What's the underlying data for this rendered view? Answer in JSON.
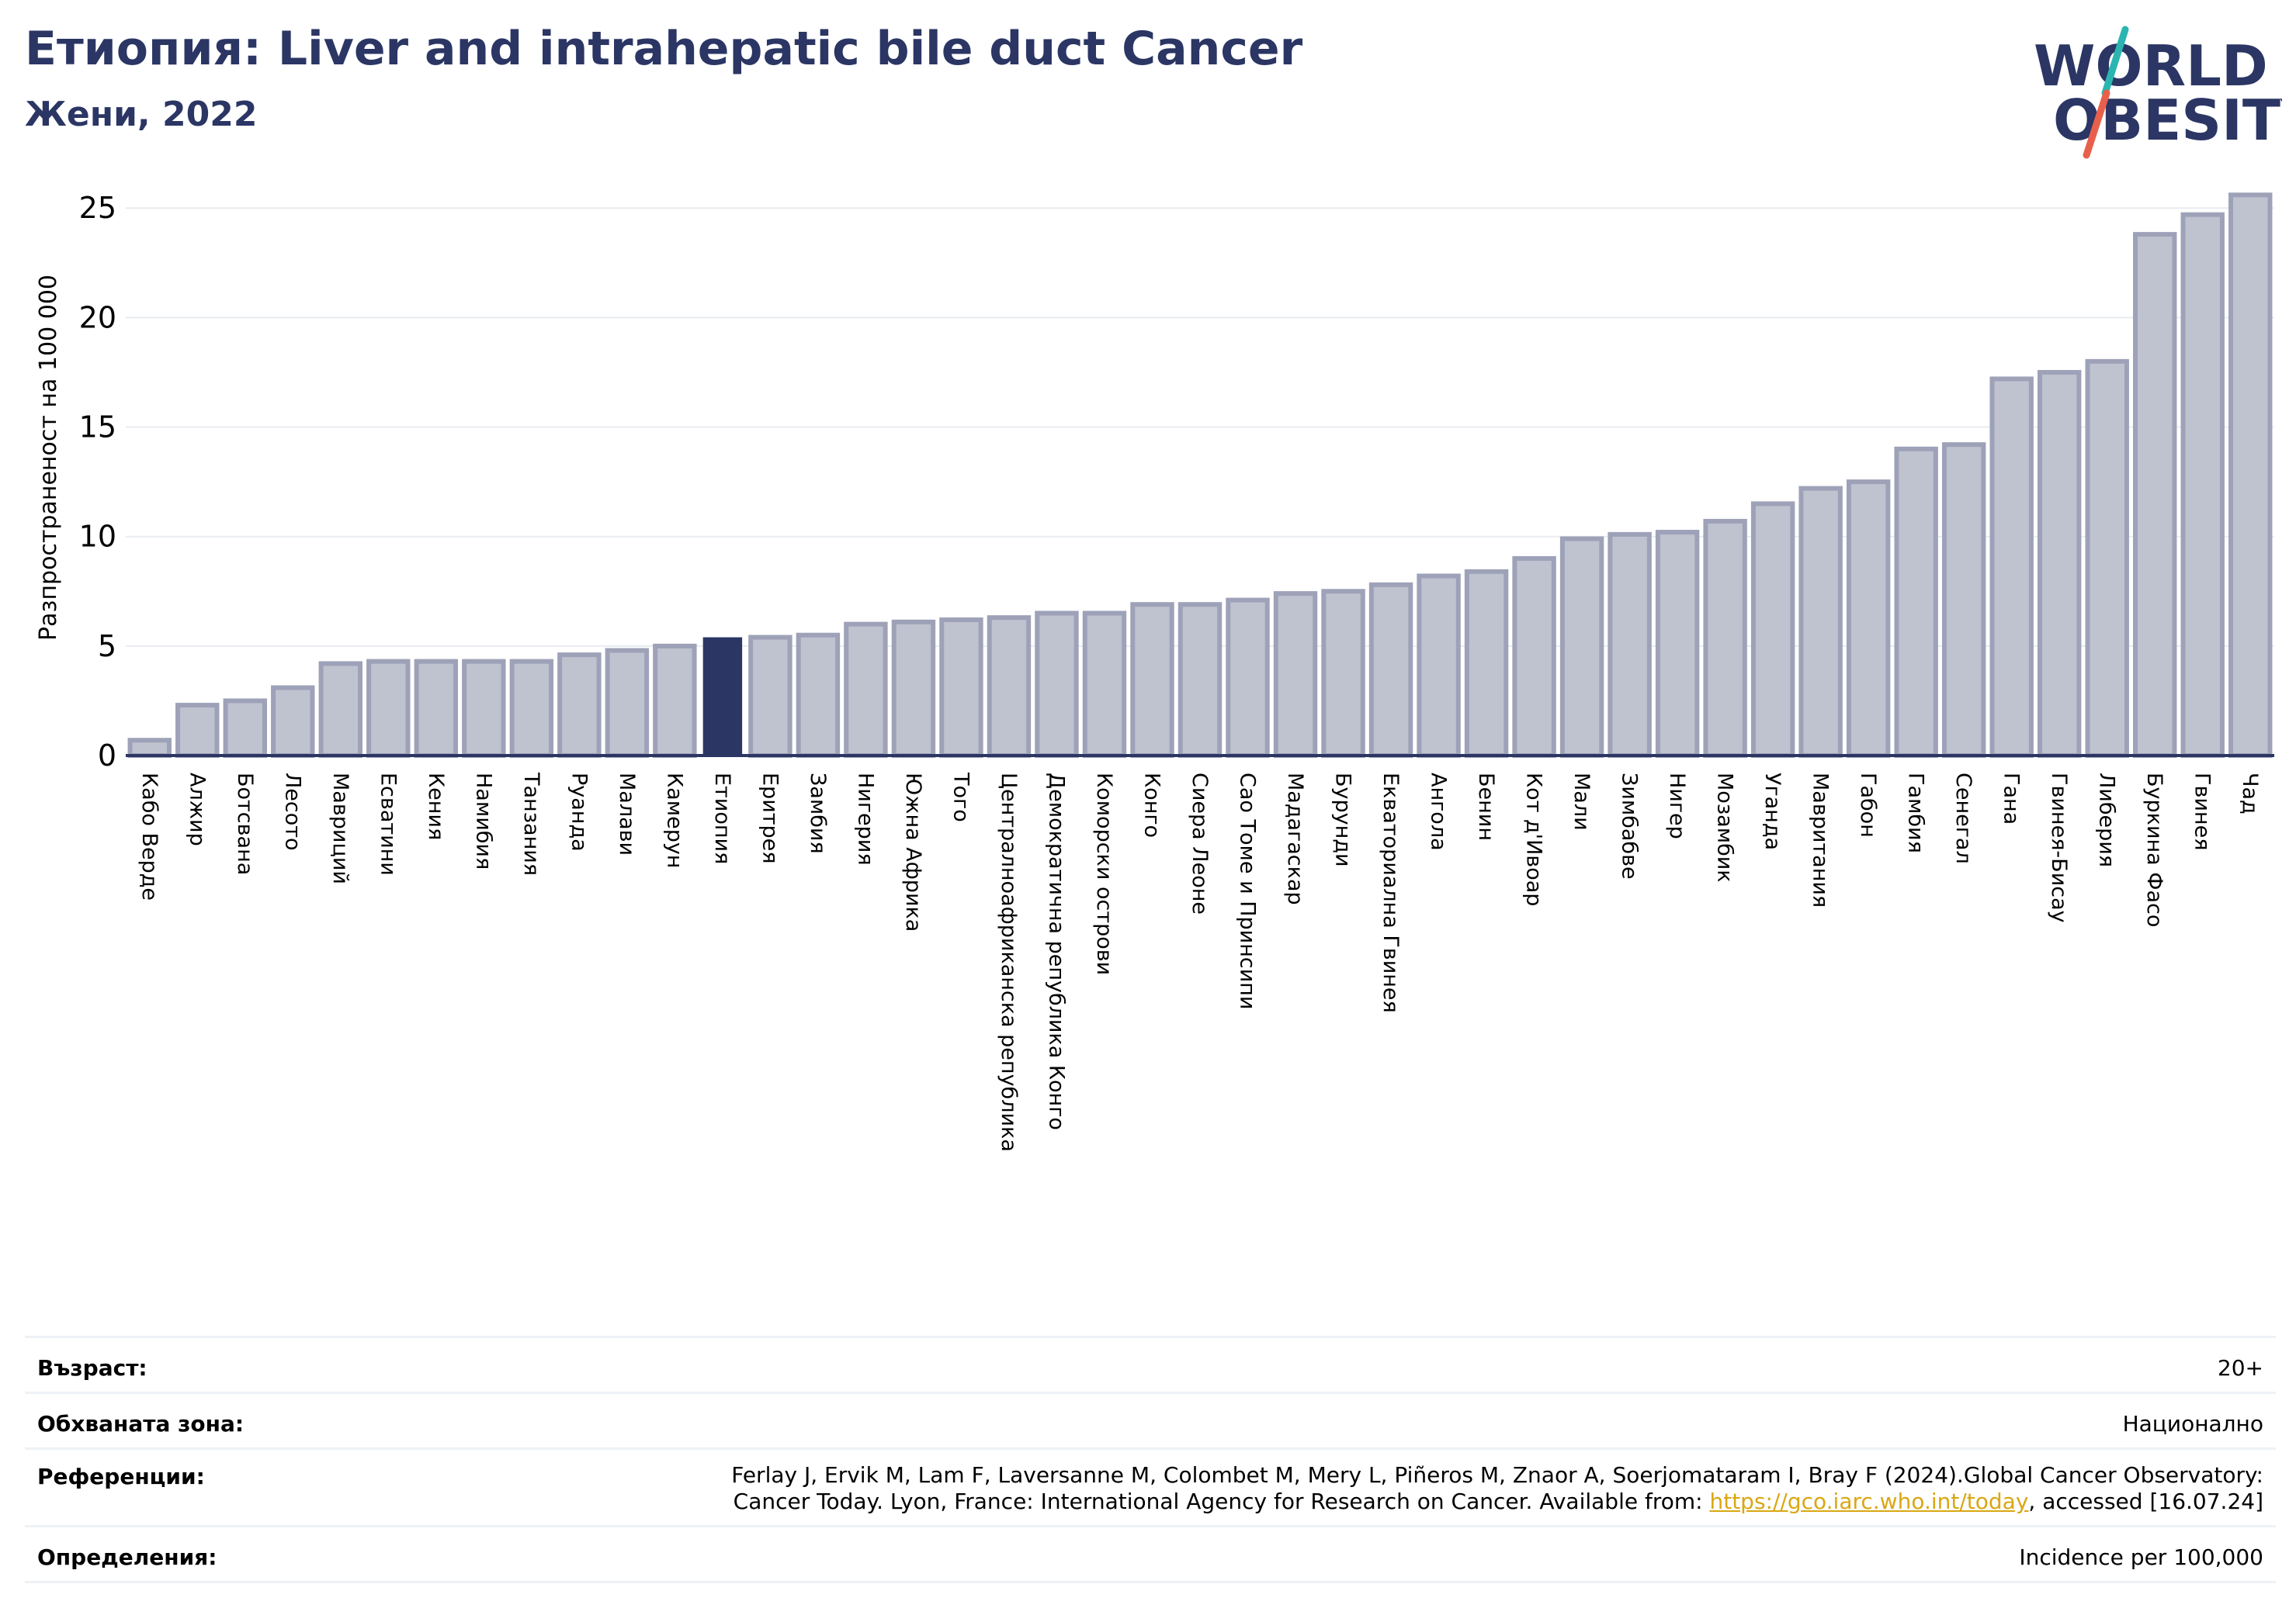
{
  "header": {
    "title": "Етиопия: Liver and intrahepatic bile duct Cancer",
    "subtitle": "Жени, 2022"
  },
  "logo": {
    "line1": "WORLD",
    "line2": "OBESITY",
    "colors": {
      "text": "#2b3664",
      "slash_teal": "#2bb5b0",
      "slash_red": "#e8604c"
    }
  },
  "colors": {
    "bar_fill": "#bfc2cf",
    "bar_stroke": "#9ea2b8",
    "highlight": "#2b3664",
    "grid": "#e8ebf0",
    "axis": "#2b3664"
  },
  "chart_data": {
    "type": "bar",
    "title": "",
    "xlabel": "",
    "ylabel": "Разпространеност  на 100 000",
    "ylim": [
      0,
      26
    ],
    "yticks": [
      "0",
      "5",
      "10",
      "15",
      "20",
      "25"
    ],
    "grid": true,
    "highlight_category": "Етиопия",
    "categories": [
      "Кабо Верде",
      "Алжир",
      "Ботсвана",
      "Лесото",
      "Мавриций",
      "Есватини",
      "Кения",
      "Намибия",
      "Танзания",
      "Руанда",
      "Малави",
      "Камерун",
      "Етиопия",
      "Еритрея",
      "Замбия",
      "Нигерия",
      "Южна Африка",
      "Того",
      "Централноафриканска република",
      "Демократична република Конго",
      "Коморски острови",
      "Конго",
      "Сиера Леоне",
      "Сао Томе и Принсипи",
      "Мадагаскар",
      "Бурунди",
      "Екваториална Гвинея",
      "Ангола",
      "Бенин",
      "Кот д'Ивоар",
      "Мали",
      "Зимбабве",
      "Нигер",
      "Мозамбик",
      "Уганда",
      "Мавритания",
      "Габон",
      "Гамбия",
      "Сенегал",
      "Гана",
      "Гвинея-Бисау",
      "Либерия",
      "Буркина Фасо",
      "Гвинея",
      "Чад"
    ],
    "values": [
      0.7,
      2.3,
      2.5,
      3.1,
      4.2,
      4.3,
      4.3,
      4.3,
      4.3,
      4.6,
      4.8,
      5.0,
      5.4,
      5.4,
      5.5,
      6.0,
      6.1,
      6.2,
      6.3,
      6.5,
      6.5,
      6.9,
      6.9,
      7.1,
      7.4,
      7.5,
      7.8,
      8.2,
      8.4,
      9.0,
      9.9,
      10.1,
      10.2,
      10.7,
      11.5,
      12.2,
      12.5,
      14.0,
      14.2,
      17.2,
      17.5,
      18.0,
      23.8,
      24.7,
      25.6
    ]
  },
  "meta": {
    "age_label": "Възраст:",
    "age_value": "20+",
    "area_label": "Обхваната зона:",
    "area_value": "Национално",
    "ref_label": "Референции:",
    "ref_line1": "Ferlay J, Ervik M, Lam F, Laversanne M, Colombet M, Mery L, Piñeros M, Znaor A, Soerjomataram I, Bray F (2024).Global Cancer Observatory:",
    "ref_line2_pre": "Cancer Today. Lyon, France: International Agency for Research on Cancer. Available from: ",
    "ref_link": "https://gco.iarc.who.int/today",
    "ref_line2_post": ", accessed [16.07.24]",
    "def_label": "Определения:",
    "def_value": "Incidence per 100,000"
  }
}
